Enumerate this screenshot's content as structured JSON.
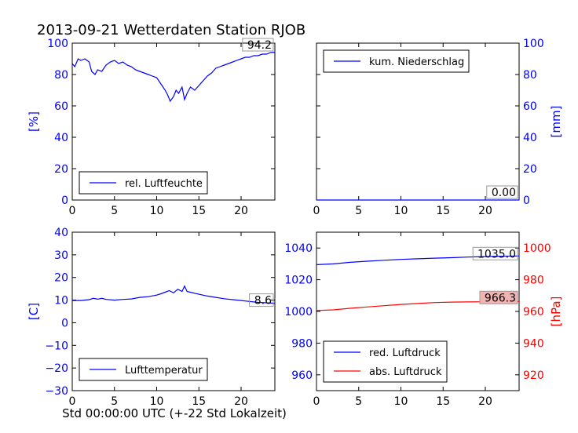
{
  "title": "2013-09-21 Wetterdaten Station RJOB",
  "xlabel": "Std 00:00:00 UTC (+-22 Std Lokalzeit)",
  "colors": {
    "blue": "#0000ff",
    "red": "#ff0000",
    "axis": "#000000",
    "badge_red": "#f2b3b3"
  },
  "chart_data": [
    {
      "type": "line",
      "panel": "top-left",
      "ylabel": "[%]",
      "xlim": [
        0,
        24
      ],
      "ylim": [
        0,
        100
      ],
      "xticks": [
        0,
        5,
        10,
        15,
        20
      ],
      "yticks": [
        0,
        20,
        40,
        60,
        80,
        100
      ],
      "ytick_side": "left",
      "legend_placement": "lower-left",
      "value_label": "94.2",
      "series": [
        {
          "name": "rel. Luftfeuchte",
          "color": "#0000ff",
          "x": [
            0,
            0.3,
            0.7,
            1.0,
            1.5,
            2.0,
            2.3,
            2.7,
            3.0,
            3.5,
            4.0,
            4.5,
            5.0,
            5.5,
            6.0,
            6.5,
            7.0,
            7.5,
            8.0,
            8.5,
            9.0,
            9.5,
            10.0,
            10.5,
            11.0,
            11.3,
            11.6,
            12.0,
            12.3,
            12.6,
            13.0,
            13.3,
            13.6,
            14.0,
            14.5,
            15.0,
            15.5,
            16.0,
            16.5,
            17.0,
            17.5,
            18.0,
            18.5,
            19.0,
            19.5,
            20.0,
            20.5,
            21.0,
            21.5,
            22.0,
            22.5,
            23.0,
            23.5,
            24.0
          ],
          "y": [
            87,
            85,
            90,
            89,
            90,
            88,
            82,
            80,
            83,
            82,
            86,
            88,
            89,
            87,
            88,
            86,
            85,
            83,
            82,
            81,
            80,
            79,
            78,
            74,
            70,
            67,
            63,
            66,
            70,
            68,
            72,
            64,
            68,
            72,
            70,
            73,
            76,
            79,
            81,
            84,
            85,
            86,
            87,
            88,
            89,
            90,
            91,
            91,
            92,
            92,
            93,
            93,
            94,
            94.2
          ]
        }
      ]
    },
    {
      "type": "line",
      "panel": "top-right",
      "ylabel": "[mm]",
      "xlim": [
        0,
        24
      ],
      "ylim": [
        0,
        100
      ],
      "xticks": [
        0,
        5,
        10,
        15,
        20
      ],
      "yticks": [
        0,
        20,
        40,
        60,
        80,
        100
      ],
      "ytick_side": "right",
      "legend_placement": "upper-left",
      "value_label": "0.00",
      "series": [
        {
          "name": "kum. Niederschlag",
          "color": "#0000ff",
          "x": [
            0,
            24
          ],
          "y": [
            0,
            0
          ]
        }
      ]
    },
    {
      "type": "line",
      "panel": "bottom-left",
      "ylabel": "[C]",
      "xlim": [
        0,
        24
      ],
      "ylim": [
        -30,
        40
      ],
      "xticks": [
        0,
        5,
        10,
        15,
        20
      ],
      "yticks": [
        -30,
        -20,
        -10,
        0,
        10,
        20,
        30,
        40
      ],
      "ytick_side": "left",
      "legend_placement": "lower-left",
      "value_label": "8.6",
      "series": [
        {
          "name": "Lufttemperatur",
          "color": "#0000ff",
          "x": [
            0,
            1,
            2,
            2.5,
            3,
            3.5,
            4,
            5,
            6,
            7,
            8,
            9,
            10,
            10.5,
            11,
            11.5,
            12,
            12.5,
            13,
            13.3,
            13.6,
            14,
            14.5,
            15,
            16,
            17,
            18,
            19,
            20,
            21,
            22,
            23,
            24
          ],
          "y": [
            9.8,
            9.8,
            10.2,
            10.8,
            10.4,
            10.8,
            10.3,
            10.0,
            10.3,
            10.5,
            11.2,
            11.5,
            12.2,
            12.8,
            13.5,
            14.2,
            13.2,
            14.8,
            13.8,
            16.2,
            13.8,
            13.5,
            13.0,
            12.6,
            11.8,
            11.2,
            10.6,
            10.2,
            9.8,
            9.4,
            9.0,
            8.8,
            8.6
          ]
        }
      ]
    },
    {
      "type": "line",
      "panel": "bottom-right",
      "ylabel": "[hPa]",
      "xlim": [
        0,
        24
      ],
      "ylim_left": [
        950,
        1050
      ],
      "ylim_right": [
        910,
        1010
      ],
      "xticks": [
        0,
        5,
        10,
        15,
        20
      ],
      "yticks_left": [
        960,
        980,
        1000,
        1020,
        1040
      ],
      "yticks_right": [
        920,
        940,
        960,
        980,
        1000
      ],
      "legend_placement": "lower-left",
      "series": [
        {
          "name": "red. Luftdruck",
          "color": "#0000ff",
          "axis": "left",
          "value_label": "1035.0",
          "x": [
            0,
            2,
            4,
            6,
            8,
            10,
            12,
            14,
            16,
            18,
            20,
            22,
            24
          ],
          "y": [
            1029.5,
            1030.0,
            1031.0,
            1031.7,
            1032.3,
            1032.8,
            1033.2,
            1033.6,
            1033.9,
            1034.3,
            1034.6,
            1034.8,
            1035.0
          ]
        },
        {
          "name": "abs. Luftdruck",
          "color": "#ff0000",
          "axis": "right",
          "value_label": "966.3",
          "x": [
            0,
            2,
            4,
            6,
            8,
            10,
            12,
            14,
            16,
            18,
            20,
            22,
            24
          ],
          "y": [
            960.6,
            961.0,
            962.0,
            962.8,
            963.6,
            964.4,
            965.0,
            965.6,
            965.9,
            966.0,
            966.1,
            966.2,
            966.3
          ]
        }
      ]
    }
  ]
}
